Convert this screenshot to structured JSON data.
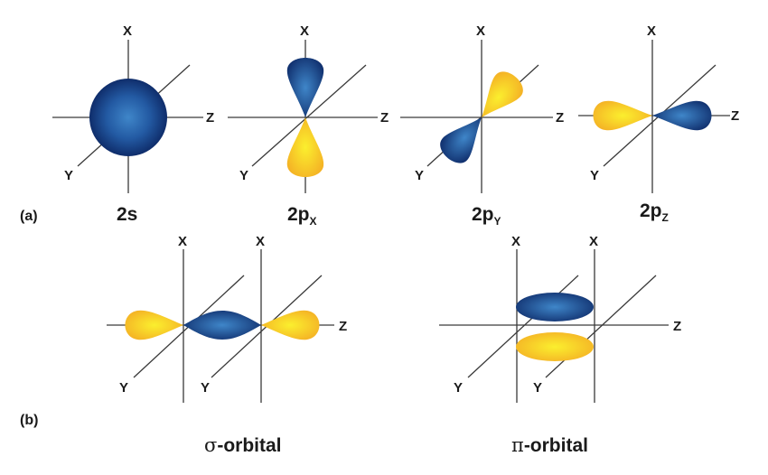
{
  "colors": {
    "lobe_blue_light": "#3f86c9",
    "lobe_blue_dark": "#0f2d6b",
    "lobe_yellow_light": "#fbef2e",
    "lobe_yellow_dark": "#f4b025",
    "axis": "#3a3a3a"
  },
  "axes": {
    "x": "X",
    "y": "Y",
    "z": "Z"
  },
  "part_a": {
    "tag": "(a)",
    "orbitals": [
      {
        "name": "2s",
        "base": "2s",
        "sub": ""
      },
      {
        "name": "2px",
        "base": "2p",
        "sub": "X"
      },
      {
        "name": "2py",
        "base": "2p",
        "sub": "Y"
      },
      {
        "name": "2pz",
        "base": "2p",
        "sub": "Z"
      }
    ]
  },
  "part_b": {
    "tag": "(b)",
    "sigma": {
      "symbol": "σ",
      "suffix": "-orbital"
    },
    "pi": {
      "symbol": "π",
      "suffix": "-orbital"
    }
  }
}
